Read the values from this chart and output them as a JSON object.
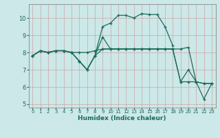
{
  "xlabel": "Humidex (Indice chaleur)",
  "bg_color": "#cce8e8",
  "grid_color": "#aacece",
  "line_color": "#1a6b5a",
  "spine_color": "#888888",
  "xlim": [
    -0.5,
    23.5
  ],
  "ylim": [
    4.8,
    10.8
  ],
  "xticks": [
    0,
    1,
    2,
    3,
    4,
    5,
    6,
    7,
    8,
    9,
    10,
    11,
    12,
    13,
    14,
    15,
    16,
    17,
    18,
    19,
    20,
    21,
    22,
    23
  ],
  "yticks": [
    5,
    6,
    7,
    8,
    9,
    10
  ],
  "series": [
    [
      7.8,
      8.1,
      8.0,
      8.1,
      8.1,
      8.0,
      8.0,
      8.0,
      8.1,
      8.2,
      8.2,
      8.2,
      8.2,
      8.2,
      8.2,
      8.2,
      8.2,
      8.2,
      8.2,
      8.2,
      8.3,
      6.3,
      6.2,
      6.2
    ],
    [
      7.8,
      8.1,
      8.0,
      8.1,
      8.1,
      8.0,
      7.5,
      7.0,
      7.8,
      9.5,
      9.7,
      10.15,
      10.15,
      10.0,
      10.25,
      10.2,
      10.2,
      9.5,
      8.4,
      null,
      null,
      null,
      null,
      null
    ],
    [
      7.8,
      8.1,
      8.0,
      8.1,
      8.1,
      8.0,
      7.5,
      7.0,
      7.8,
      8.9,
      8.2,
      8.2,
      8.2,
      8.2,
      8.2,
      8.2,
      8.2,
      8.2,
      8.2,
      6.3,
      7.0,
      6.3,
      5.3,
      6.2
    ],
    [
      7.8,
      8.1,
      8.0,
      8.1,
      8.1,
      8.0,
      7.5,
      7.0,
      7.8,
      8.2,
      8.2,
      8.2,
      8.2,
      8.2,
      8.2,
      8.2,
      8.2,
      8.2,
      8.2,
      6.3,
      6.3,
      6.3,
      6.2,
      6.2
    ]
  ]
}
